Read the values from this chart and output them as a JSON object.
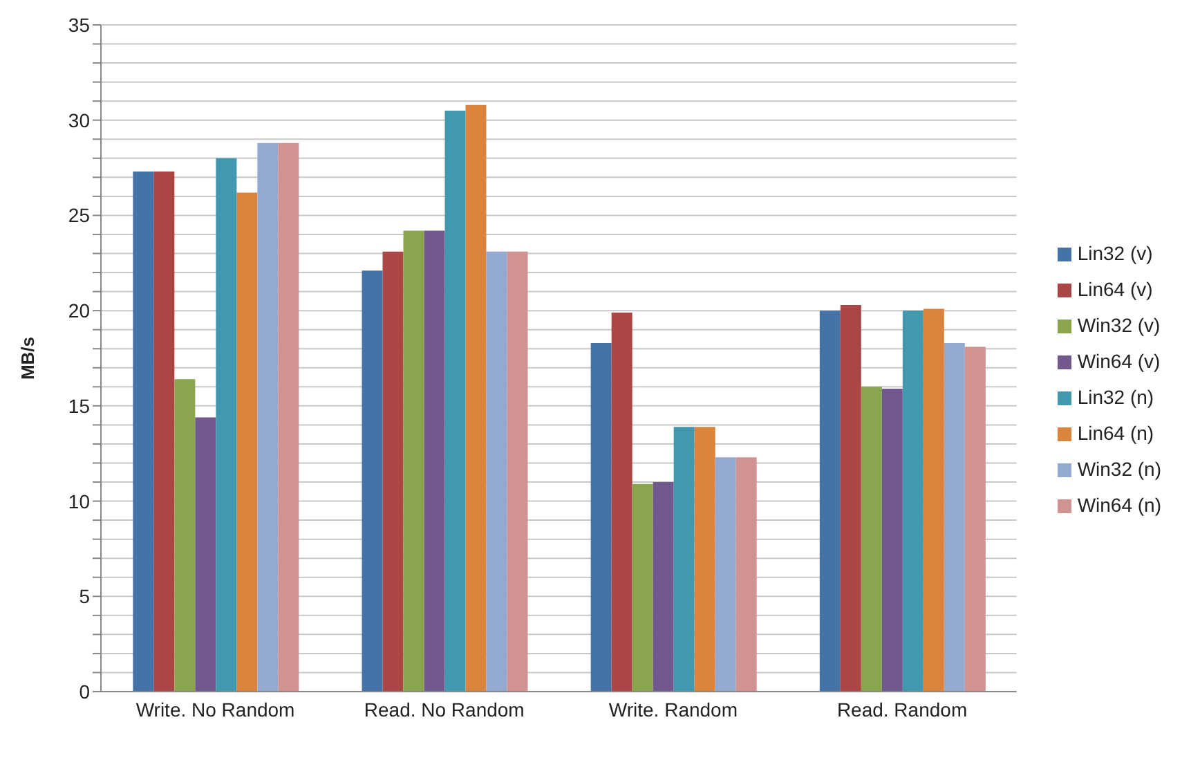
{
  "chart_data": {
    "type": "bar",
    "ylabel": "MB/s",
    "categories": [
      "Write. No Random",
      "Read. No Random",
      "Write. Random",
      "Read. Random"
    ],
    "series": [
      {
        "name": "Lin32 (v)",
        "color": "#4572a7",
        "values": [
          27.3,
          22.1,
          18.3,
          20.0
        ]
      },
      {
        "name": "Lin64 (v)",
        "color": "#aa4643",
        "values": [
          27.3,
          23.1,
          19.9,
          20.3
        ]
      },
      {
        "name": "Win32 (v)",
        "color": "#89a54e",
        "values": [
          16.4,
          24.2,
          10.9,
          16.0
        ]
      },
      {
        "name": "Win64 (v)",
        "color": "#71588f",
        "values": [
          14.4,
          24.2,
          11.0,
          15.9
        ]
      },
      {
        "name": "Lin32 (n)",
        "color": "#4198af",
        "values": [
          28.0,
          30.5,
          13.9,
          20.0
        ]
      },
      {
        "name": "Lin64 (n)",
        "color": "#db843d",
        "values": [
          26.2,
          30.8,
          13.9,
          20.1
        ]
      },
      {
        "name": "Win32 (n)",
        "color": "#93a9cf",
        "values": [
          28.8,
          23.1,
          12.3,
          18.3
        ]
      },
      {
        "name": "Win64 (n)",
        "color": "#d19392",
        "values": [
          28.8,
          23.1,
          12.3,
          18.1
        ]
      }
    ],
    "ylim": [
      0,
      35
    ],
    "yticks": [
      0,
      {
        "value": 1,
        "label": null
      },
      {
        "value": 2,
        "label": null
      },
      {
        "value": 3,
        "label": null
      },
      {
        "value": 4,
        "label": null
      },
      5,
      {
        "value": 6,
        "label": null
      },
      {
        "value": 7,
        "label": null
      },
      {
        "value": 8,
        "label": null
      },
      {
        "value": 9,
        "label": null
      },
      10,
      {
        "value": 11,
        "label": null
      },
      {
        "value": 12,
        "label": null
      },
      {
        "value": 13,
        "label": null
      },
      {
        "value": 14,
        "label": null
      },
      15,
      {
        "value": 16,
        "label": null
      },
      {
        "value": 17,
        "label": null
      },
      {
        "value": 18,
        "label": null
      },
      {
        "value": 19,
        "label": null
      },
      20,
      {
        "value": 21,
        "label": null
      },
      {
        "value": 22,
        "label": null
      },
      {
        "value": 23,
        "label": null
      },
      {
        "value": 24,
        "label": null
      },
      25,
      {
        "value": 26,
        "label": null
      },
      {
        "value": 27,
        "label": null
      },
      {
        "value": 28,
        "label": null
      },
      {
        "value": 29,
        "label": null
      },
      30,
      {
        "value": 31,
        "label": null
      },
      {
        "value": 32,
        "label": null
      },
      {
        "value": 33,
        "label": null
      },
      {
        "value": 34,
        "label": null
      },
      35
    ],
    "grid": "y",
    "legend": "right"
  }
}
